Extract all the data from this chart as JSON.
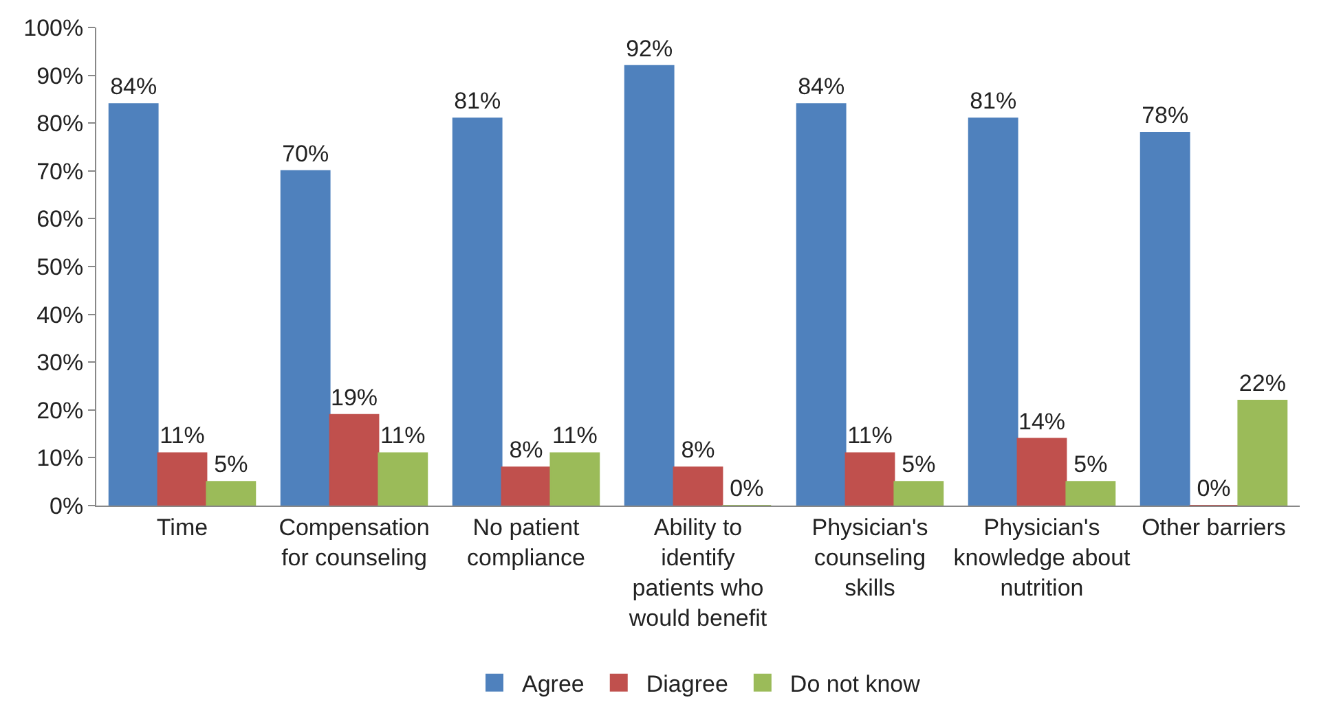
{
  "chart_data": {
    "type": "bar",
    "categories": [
      "Time",
      "Compensation for counseling",
      "No patient compliance",
      "Ability to identify patients who would benefit",
      "Physician's counseling skills",
      "Physician's knowledge about nutrition",
      "Other barriers"
    ],
    "series": [
      {
        "name": "Agree",
        "color": "#4f81bd",
        "values": [
          84,
          70,
          81,
          92,
          84,
          81,
          78
        ],
        "value_labels": [
          "84%",
          "70%",
          "81%",
          "92%",
          "84%",
          "81%",
          "78%"
        ]
      },
      {
        "name": "Diagree",
        "color": "#c0504d",
        "values": [
          11,
          19,
          8,
          8,
          11,
          14,
          0
        ],
        "value_labels": [
          "11%",
          "19%",
          "8%",
          "8%",
          "11%",
          "14%",
          "0%"
        ]
      },
      {
        "name": "Do not know",
        "color": "#9bbb59",
        "values": [
          5,
          11,
          11,
          0,
          5,
          5,
          22
        ],
        "value_labels": [
          "5%",
          "11%",
          "11%",
          "0%",
          "5%",
          "5%",
          "22%"
        ]
      }
    ],
    "ylim": [
      0,
      100
    ],
    "yticks": [
      {
        "value": 0,
        "label": "0%"
      },
      {
        "value": 10,
        "label": "10%"
      },
      {
        "value": 20,
        "label": "20%"
      },
      {
        "value": 30,
        "label": "30%"
      },
      {
        "value": 40,
        "label": "40%"
      },
      {
        "value": 50,
        "label": "50%"
      },
      {
        "value": 60,
        "label": "60%"
      },
      {
        "value": 70,
        "label": "70%"
      },
      {
        "value": 80,
        "label": "80%"
      },
      {
        "value": 90,
        "label": "90%"
      },
      {
        "value": 100,
        "label": "100%"
      }
    ],
    "legend": "bottom"
  }
}
